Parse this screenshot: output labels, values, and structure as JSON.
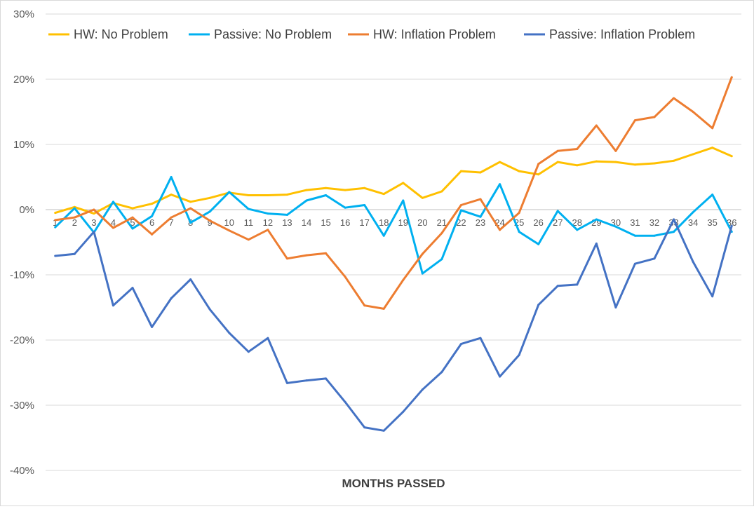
{
  "chart_data": {
    "type": "line",
    "xlabel": "MONTHS PASSED",
    "ylabel": "",
    "ylim": [
      -40,
      30
    ],
    "y_ticks": [
      "30%",
      "20%",
      "10%",
      "0%",
      "-10%",
      "-20%",
      "-30%",
      "-40%"
    ],
    "y_tick_values": [
      30,
      20,
      10,
      0,
      -10,
      -20,
      -30,
      -40
    ],
    "categories": [
      "1",
      "2",
      "3",
      "4",
      "5",
      "6",
      "7",
      "8",
      "9",
      "10",
      "11",
      "12",
      "13",
      "14",
      "15",
      "16",
      "17",
      "18",
      "19",
      "20",
      "21",
      "22",
      "23",
      "24",
      "25",
      "26",
      "27",
      "28",
      "29",
      "30",
      "31",
      "32",
      "33",
      "34",
      "35",
      "36"
    ],
    "grid": "horizontal",
    "legend_position": "top",
    "series": [
      {
        "name": "HW: No Problem",
        "color": "#ffc000",
        "values": [
          -0.5,
          0.4,
          -0.6,
          1.0,
          0.2,
          0.9,
          2.3,
          1.2,
          1.8,
          2.6,
          2.2,
          2.2,
          2.3,
          3.0,
          3.3,
          3.0,
          3.3,
          2.4,
          4.1,
          1.8,
          2.8,
          5.9,
          5.7,
          7.3,
          5.9,
          5.4,
          7.3,
          6.8,
          7.4,
          7.3,
          6.9,
          7.1,
          7.5,
          8.5,
          9.5,
          8.2
        ]
      },
      {
        "name": "Passive: No Problem",
        "color": "#00b0f0",
        "values": [
          -2.7,
          0.2,
          -3.5,
          1.2,
          -2.9,
          -1.0,
          5.0,
          -2.0,
          -0.3,
          2.7,
          0.1,
          -0.6,
          -0.8,
          1.4,
          2.2,
          0.3,
          0.7,
          -4.0,
          1.4,
          -9.8,
          -7.6,
          -0.1,
          -1.1,
          3.9,
          -3.4,
          -5.3,
          -0.2,
          -3.1,
          -1.5,
          -2.6,
          -4.0,
          -4.0,
          -3.4,
          -0.4,
          2.3,
          -3.4
        ]
      },
      {
        "name": "HW: Inflation Problem",
        "color": "#ed7d31",
        "values": [
          -1.6,
          -1.2,
          0.0,
          -2.8,
          -1.2,
          -3.8,
          -1.2,
          0.2,
          -1.7,
          -3.2,
          -4.6,
          -3.1,
          -7.5,
          -7.0,
          -6.7,
          -10.3,
          -14.7,
          -15.2,
          -10.8,
          -6.8,
          -3.6,
          0.7,
          1.6,
          -3.1,
          -0.5,
          7.0,
          9.0,
          9.3,
          12.9,
          9.0,
          13.7,
          14.2,
          17.1,
          15.0,
          12.5,
          20.3
        ]
      },
      {
        "name": "Passive: Inflation Problem",
        "color": "#4472c4",
        "values": [
          -7.1,
          -6.8,
          -3.4,
          -14.7,
          -12.0,
          -18.0,
          -13.6,
          -10.7,
          -15.3,
          -18.9,
          -21.8,
          -19.7,
          -26.6,
          -26.2,
          -25.9,
          -29.5,
          -33.4,
          -33.9,
          -31.0,
          -27.6,
          -24.9,
          -20.6,
          -19.7,
          -25.6,
          -22.3,
          -14.6,
          -11.7,
          -11.5,
          -5.2,
          -15.0,
          -8.3,
          -7.5,
          -1.5,
          -8.0,
          -13.3,
          -2.5
        ]
      }
    ]
  }
}
